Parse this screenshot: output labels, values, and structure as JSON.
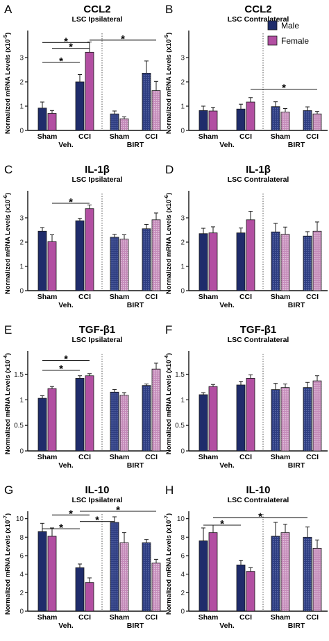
{
  "colors": {
    "male": "#1f2c6b",
    "female": "#b24fa2",
    "male_hatch_bg": "#2d3c80",
    "female_hatch_bg": "#c48ab9",
    "axis": "#111111"
  },
  "legend": [
    {
      "label": "Male",
      "series": "male"
    },
    {
      "label": "Female",
      "series": "female"
    }
  ],
  "chart_data": [
    {
      "type": "bar",
      "panel": "A",
      "title": "CCL2",
      "subtitle": "LSC Ipsilateral",
      "ylabel_text": "Normalized mRNA Levels (x10",
      "ylabel_exp": "-5",
      "ylabel_close": ")",
      "ylim": [
        0,
        4
      ],
      "yticks": [
        0,
        1,
        2,
        3
      ],
      "categories": [
        "Sham",
        "CCI",
        "Sham",
        "CCI"
      ],
      "groups": [
        "Veh.",
        "BIRT"
      ],
      "series": [
        {
          "name": "Male",
          "values": [
            0.92,
            2.0,
            0.68,
            2.36
          ],
          "errors": [
            0.25,
            0.3,
            0.12,
            0.5
          ]
        },
        {
          "name": "Female",
          "values": [
            0.7,
            3.22,
            0.48,
            1.64
          ],
          "errors": [
            0.12,
            0.42,
            0.08,
            0.38
          ]
        }
      ],
      "significance": [
        {
          "from": [
            0,
            0
          ],
          "to": [
            1,
            0
          ],
          "level": 2.8,
          "label": "*"
        },
        {
          "from": [
            0,
            1
          ],
          "to": [
            1,
            1
          ],
          "level": 3.38,
          "label": "*"
        },
        {
          "from": [
            0,
            0
          ],
          "to": [
            1,
            1
          ],
          "level": 3.62,
          "label": "*"
        },
        {
          "from": [
            1,
            1
          ],
          "to": [
            3,
            1
          ],
          "level": 3.72,
          "label": "*"
        }
      ]
    },
    {
      "type": "bar",
      "panel": "B",
      "title": "CCL2",
      "subtitle": "LSC Contralateral",
      "ylabel_text": "Normalized mRNA Levels (x10",
      "ylabel_exp": "-5",
      "ylabel_close": ")",
      "ylim": [
        0,
        4
      ],
      "yticks": [
        0,
        1,
        2,
        3
      ],
      "categories": [
        "Sham",
        "CCI",
        "Sham",
        "CCI"
      ],
      "groups": [
        "Veh.",
        "BIRT"
      ],
      "series": [
        {
          "name": "Male",
          "values": [
            0.82,
            0.88,
            0.98,
            0.82
          ],
          "errors": [
            0.18,
            0.2,
            0.2,
            0.15
          ]
        },
        {
          "name": "Female",
          "values": [
            0.8,
            1.17,
            0.76,
            0.68
          ],
          "errors": [
            0.15,
            0.18,
            0.14,
            0.1
          ]
        }
      ],
      "significance": [
        {
          "from": [
            1,
            1
          ],
          "to": [
            3,
            1
          ],
          "level": 1.7,
          "label": "*"
        }
      ]
    },
    {
      "type": "bar",
      "panel": "C",
      "title": "IL-1β",
      "subtitle": "LSC Ipsilateral",
      "ylabel_text": "Normalized mRNA Levels (x10",
      "ylabel_exp": "-6",
      "ylabel_close": ")",
      "ylim": [
        0,
        4
      ],
      "yticks": [
        0,
        1,
        2,
        3
      ],
      "categories": [
        "Sham",
        "CCI",
        "Sham",
        "CCI"
      ],
      "groups": [
        "Veh.",
        "BIRT"
      ],
      "series": [
        {
          "name": "Male",
          "values": [
            2.45,
            2.88,
            2.2,
            2.55
          ],
          "errors": [
            0.15,
            0.1,
            0.12,
            0.18
          ]
        },
        {
          "name": "Female",
          "values": [
            2.02,
            3.38,
            2.12,
            2.92
          ],
          "errors": [
            0.28,
            0.15,
            0.18,
            0.28
          ]
        }
      ],
      "significance": [
        {
          "from": [
            0,
            1
          ],
          "to": [
            1,
            1
          ],
          "level": 3.6,
          "label": "*"
        }
      ]
    },
    {
      "type": "bar",
      "panel": "D",
      "title": "IL-1β",
      "subtitle": "LSC Contralateral",
      "ylabel_text": "Normalized mRNA Levels (x10",
      "ylabel_exp": "-6",
      "ylabel_close": ")",
      "ylim": [
        0,
        4
      ],
      "yticks": [
        0,
        1,
        2,
        3
      ],
      "categories": [
        "Sham",
        "CCI",
        "Sham",
        "CCI"
      ],
      "groups": [
        "Veh.",
        "BIRT"
      ],
      "series": [
        {
          "name": "Male",
          "values": [
            2.35,
            2.38,
            2.42,
            2.25
          ],
          "errors": [
            0.22,
            0.2,
            0.35,
            0.18
          ]
        },
        {
          "name": "Female",
          "values": [
            2.38,
            2.92,
            2.32,
            2.45
          ],
          "errors": [
            0.25,
            0.35,
            0.3,
            0.38
          ]
        }
      ],
      "significance": []
    },
    {
      "type": "bar",
      "panel": "E",
      "title": "TGF-β1",
      "subtitle": "LSC Ipsilateral",
      "ylabel_text": "Normalized mRNA Levels (x10",
      "ylabel_exp": "-4",
      "ylabel_close": ")",
      "ylim": [
        0,
        1.9
      ],
      "yticks": [
        0,
        0.5,
        1.0,
        1.5
      ],
      "categories": [
        "Sham",
        "CCI",
        "Sham",
        "CCI"
      ],
      "groups": [
        "Veh.",
        "BIRT"
      ],
      "series": [
        {
          "name": "Male",
          "values": [
            1.03,
            1.42,
            1.15,
            1.28
          ],
          "errors": [
            0.05,
            0.05,
            0.05,
            0.03
          ]
        },
        {
          "name": "Female",
          "values": [
            1.22,
            1.47,
            1.09,
            1.6
          ],
          "errors": [
            0.04,
            0.04,
            0.05,
            0.12
          ]
        }
      ],
      "significance": [
        {
          "from": [
            0,
            0
          ],
          "to": [
            1,
            0
          ],
          "level": 1.58,
          "label": "*"
        },
        {
          "from": [
            0,
            0
          ],
          "to": [
            1,
            1
          ],
          "level": 1.77,
          "label": "*"
        }
      ]
    },
    {
      "type": "bar",
      "panel": "F",
      "title": "TGF-β1",
      "subtitle": "LSC Contralateral",
      "ylabel_text": "Normalized mRNA Levels (x10",
      "ylabel_exp": "-4",
      "ylabel_close": ")",
      "ylim": [
        0,
        1.9
      ],
      "yticks": [
        0,
        0.5,
        1.0,
        1.5
      ],
      "categories": [
        "Sham",
        "CCI",
        "Sham",
        "CCI"
      ],
      "groups": [
        "Veh.",
        "BIRT"
      ],
      "series": [
        {
          "name": "Male",
          "values": [
            1.1,
            1.29,
            1.2,
            1.24
          ],
          "errors": [
            0.04,
            0.07,
            0.12,
            0.1
          ]
        },
        {
          "name": "Female",
          "values": [
            1.26,
            1.42,
            1.24,
            1.37
          ],
          "errors": [
            0.04,
            0.07,
            0.07,
            0.1
          ]
        }
      ],
      "significance": []
    },
    {
      "type": "bar",
      "panel": "G",
      "title": "IL-10",
      "subtitle": "LSC Ipsilateral",
      "ylabel_text": "Normalized mRNA Levels (x10",
      "ylabel_exp": "-7",
      "ylabel_close": ")",
      "ylim": [
        0,
        10.5
      ],
      "yticks": [
        0,
        2,
        4,
        6,
        8,
        10
      ],
      "categories": [
        "Sham",
        "CCI",
        "Sham",
        "CCI"
      ],
      "groups": [
        "Veh.",
        "BIRT"
      ],
      "series": [
        {
          "name": "Male",
          "values": [
            8.6,
            4.7,
            9.6,
            7.4
          ],
          "errors": [
            0.9,
            0.4,
            0.6,
            0.35
          ]
        },
        {
          "name": "Female",
          "values": [
            8.1,
            3.1,
            7.4,
            5.2
          ],
          "errors": [
            0.9,
            0.5,
            1.1,
            0.4
          ]
        }
      ],
      "significance": [
        {
          "from": [
            0,
            0
          ],
          "to": [
            1,
            0
          ],
          "level": 8.9,
          "label": "*"
        },
        {
          "from": [
            1,
            0
          ],
          "to": [
            2,
            0
          ],
          "level": 9.7,
          "label": "*"
        },
        {
          "from": [
            0,
            1
          ],
          "to": [
            1,
            1
          ],
          "level": 10.4,
          "label": "*"
        },
        {
          "from": [
            1,
            0
          ],
          "to": [
            3,
            1
          ],
          "level": 10.8,
          "label": "*"
        }
      ]
    },
    {
      "type": "bar",
      "panel": "H",
      "title": "IL-10",
      "subtitle": "LSC Contralateral",
      "ylabel_text": "Normalized mRNA Levels (x10",
      "ylabel_exp": "-7",
      "ylabel_close": ")",
      "ylim": [
        0,
        10.5
      ],
      "yticks": [
        0,
        2,
        4,
        6,
        8,
        10
      ],
      "categories": [
        "Sham",
        "CCI",
        "Sham",
        "CCI"
      ],
      "groups": [
        "Veh.",
        "BIRT"
      ],
      "series": [
        {
          "name": "Male",
          "values": [
            7.6,
            5.0,
            8.1,
            8.0
          ],
          "errors": [
            1.4,
            0.5,
            1.5,
            1.1
          ]
        },
        {
          "name": "Female",
          "values": [
            8.5,
            4.3,
            8.5,
            6.8
          ],
          "errors": [
            0.8,
            0.4,
            0.9,
            0.9
          ]
        }
      ],
      "significance": [
        {
          "from": [
            0,
            0
          ],
          "to": [
            1,
            0
          ],
          "level": 9.3,
          "label": "*"
        },
        {
          "from": [
            0,
            1
          ],
          "to": [
            3,
            0
          ],
          "level": 10.1,
          "label": "*"
        }
      ]
    }
  ]
}
